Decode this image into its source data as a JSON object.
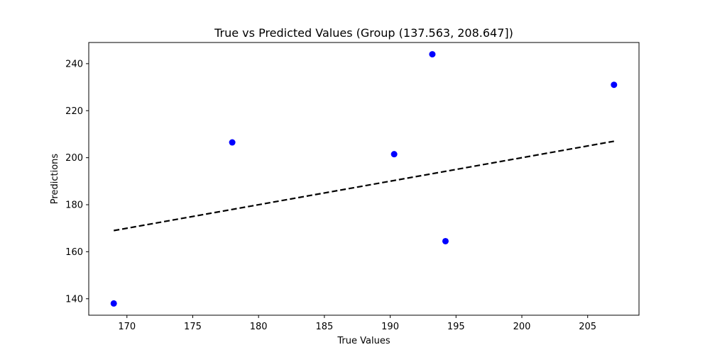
{
  "chart_data": {
    "type": "scatter",
    "title": "True vs Predicted Values (Group (137.563, 208.647])",
    "xlabel": "True Values",
    "ylabel": "Predictions",
    "xlim": [
      167.1,
      208.9
    ],
    "ylim": [
      133.0,
      249.0
    ],
    "xticks": [
      170,
      175,
      180,
      185,
      190,
      195,
      200,
      205
    ],
    "yticks": [
      140,
      160,
      180,
      200,
      220,
      240
    ],
    "grid": false,
    "series": [
      {
        "marker_color": "#0000ff",
        "points": [
          {
            "x": 169.0,
            "y": 138.0
          },
          {
            "x": 178.0,
            "y": 206.5
          },
          {
            "x": 190.3,
            "y": 201.5
          },
          {
            "x": 193.2,
            "y": 244.0
          },
          {
            "x": 194.2,
            "y": 164.5
          },
          {
            "x": 207.0,
            "y": 231.0
          }
        ]
      }
    ],
    "reference_line": {
      "style": "dashed",
      "color": "#000000",
      "points": [
        {
          "x": 169.0,
          "y": 169.0
        },
        {
          "x": 207.0,
          "y": 207.0
        }
      ]
    }
  }
}
